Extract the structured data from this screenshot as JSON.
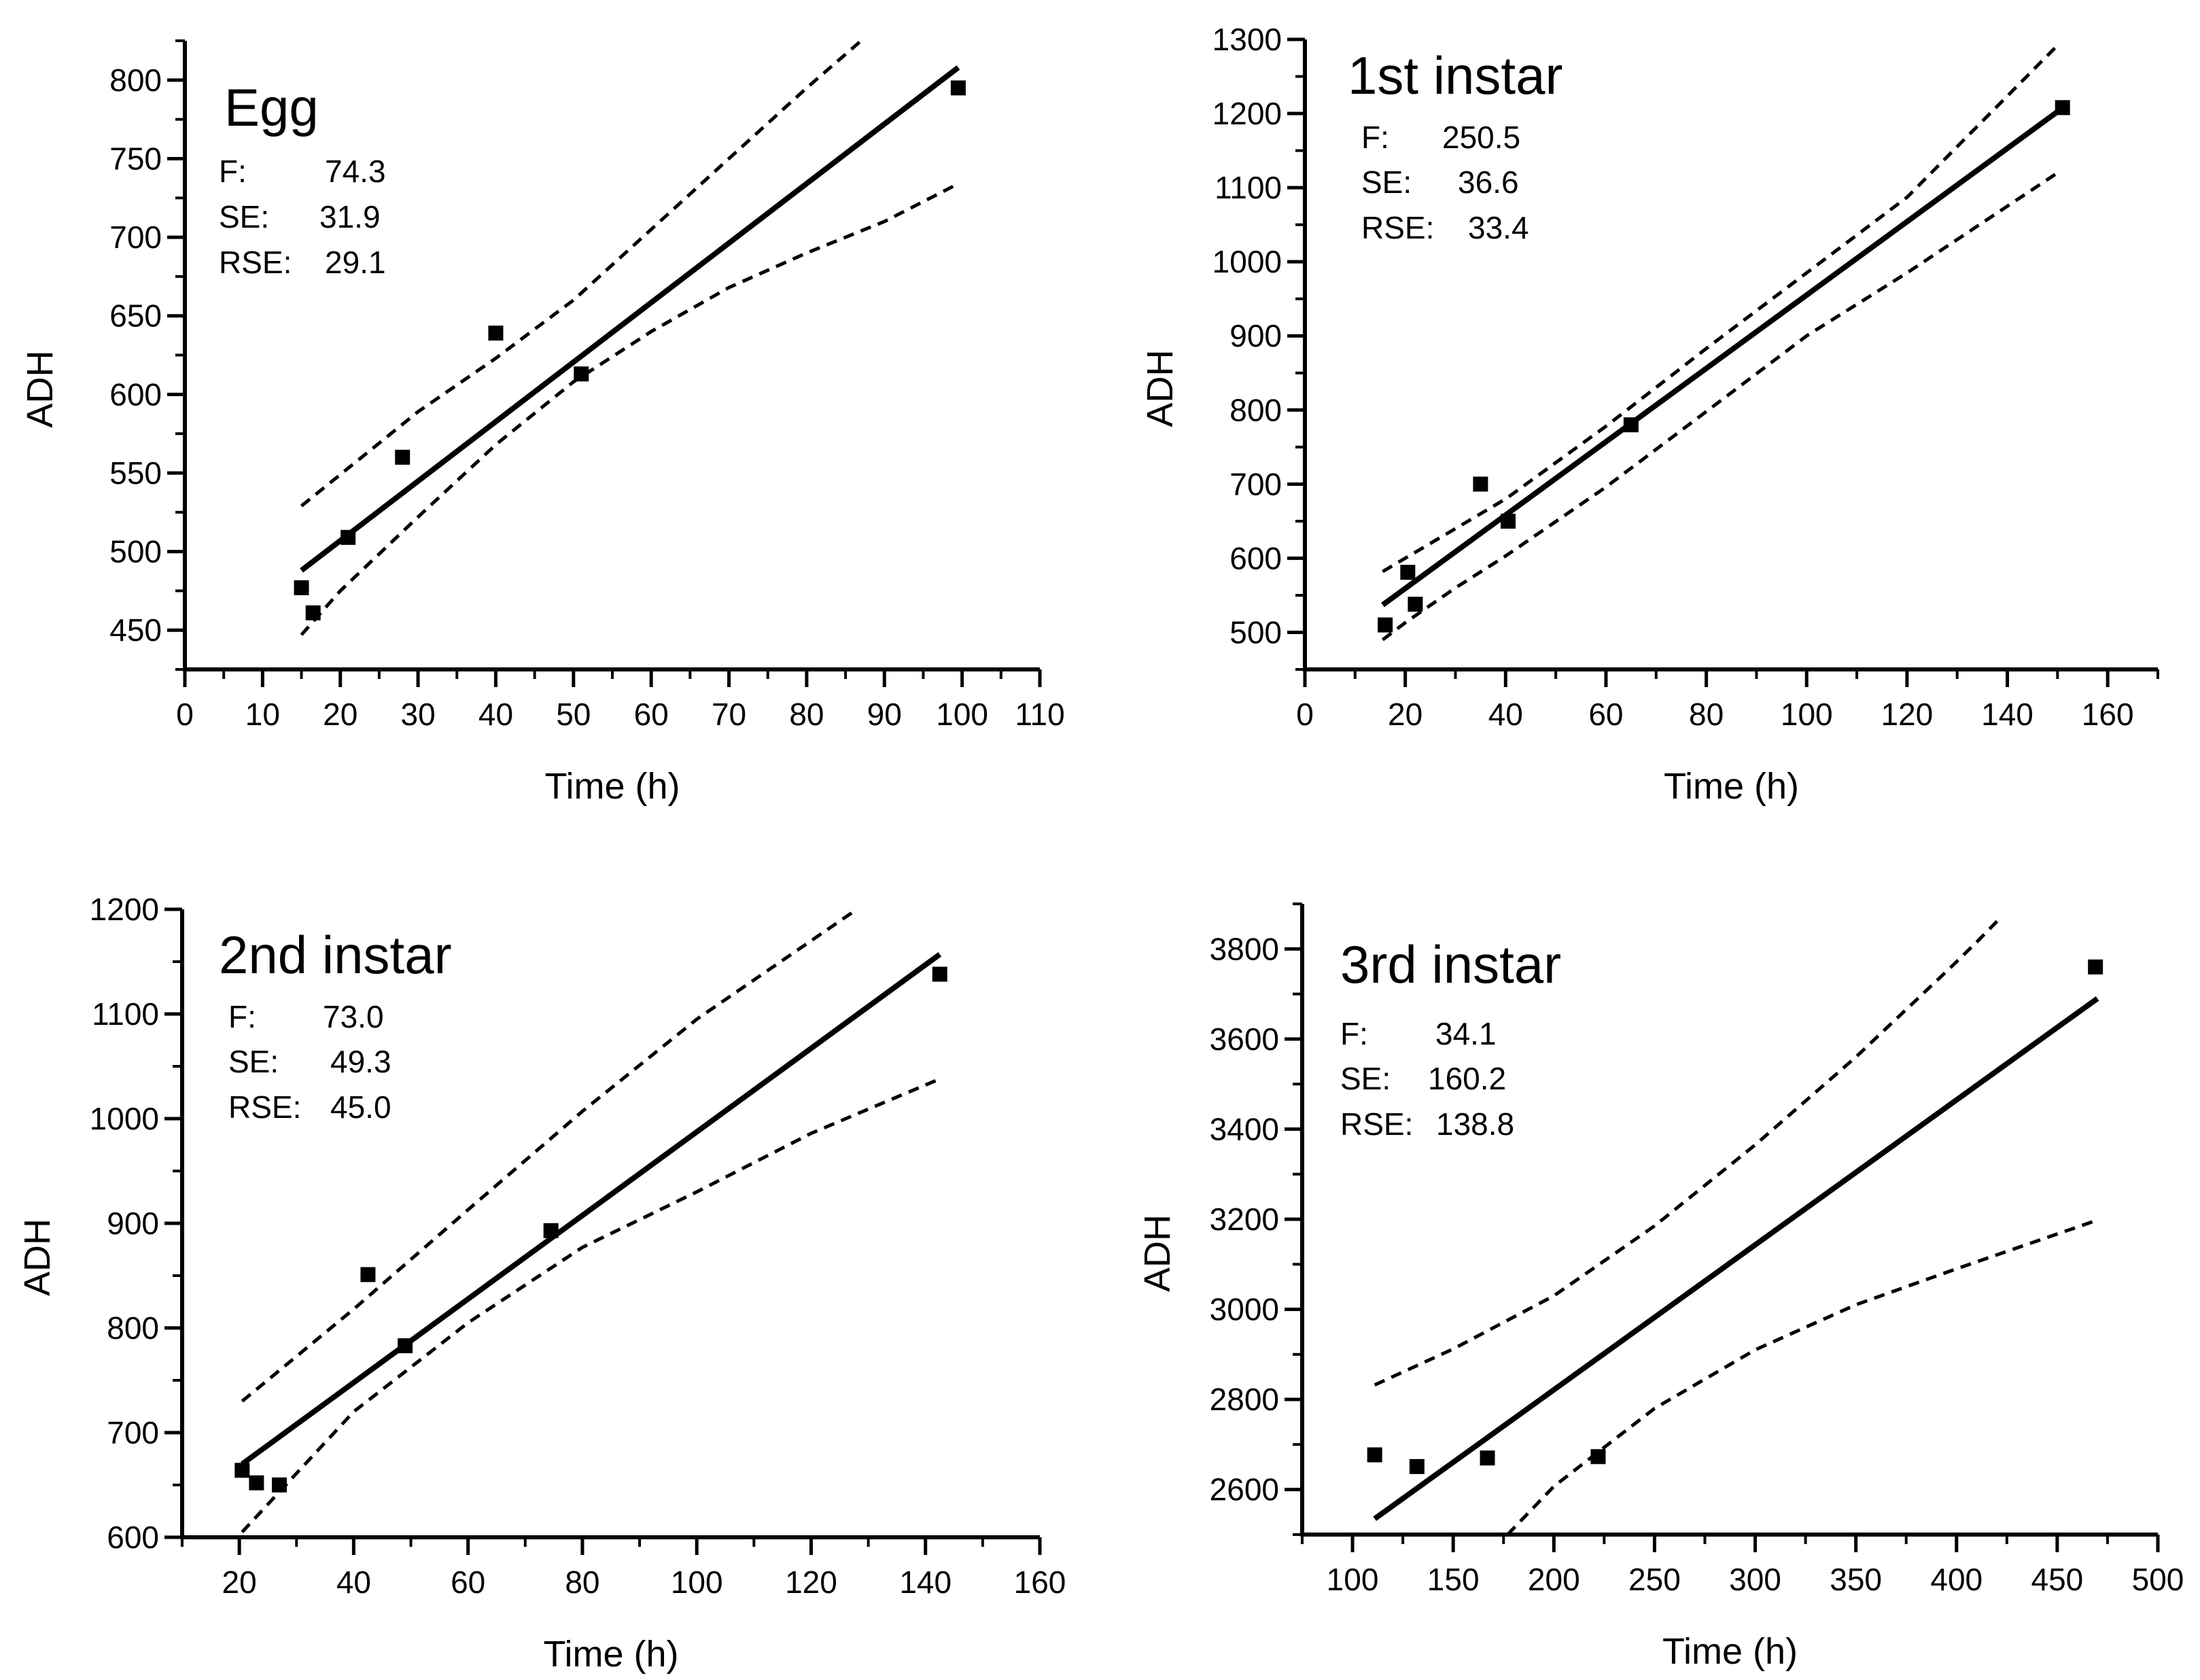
{
  "chart_data": [
    {
      "type": "scatter",
      "title": "Egg",
      "xlabel": "Time (h)",
      "ylabel": "ADH",
      "xlim": [
        0,
        110
      ],
      "ylim": [
        425,
        825
      ],
      "xticks": [
        0,
        10,
        20,
        30,
        40,
        50,
        60,
        70,
        80,
        90,
        100,
        110
      ],
      "xtick_labels": [
        "0",
        "10",
        "20",
        "30",
        "40",
        "50",
        "60",
        "70",
        "80",
        "90",
        "100",
        "110"
      ],
      "yticks": [
        450,
        500,
        550,
        600,
        650,
        700,
        750,
        800
      ],
      "ytick_labels": [
        "450",
        "500",
        "550",
        "600",
        "650",
        "700",
        "750",
        "800"
      ],
      "stats": [
        {
          "label": "F:",
          "value": "74.3"
        },
        {
          "label": "SE:",
          "value": "31.9"
        },
        {
          "label": "RSE:",
          "value": "29.1"
        }
      ],
      "points": [
        [
          15,
          477
        ],
        [
          16.5,
          461
        ],
        [
          21,
          509
        ],
        [
          28,
          560
        ],
        [
          40,
          639
        ],
        [
          51,
          613
        ],
        [
          99.5,
          795
        ]
      ],
      "fit": [
        [
          15,
          488
        ],
        [
          99.5,
          808
        ]
      ],
      "ci_upper": [
        [
          15,
          529
        ],
        [
          20,
          549
        ],
        [
          30,
          589
        ],
        [
          40,
          623
        ],
        [
          50,
          660
        ],
        [
          60,
          705
        ],
        [
          70,
          750
        ],
        [
          80,
          795
        ],
        [
          87,
          825
        ]
      ],
      "ci_lower": [
        [
          15,
          447
        ],
        [
          20,
          475
        ],
        [
          30,
          522
        ],
        [
          40,
          568
        ],
        [
          50,
          608
        ],
        [
          60,
          640
        ],
        [
          70,
          668
        ],
        [
          80,
          690
        ],
        [
          90,
          710
        ],
        [
          99.5,
          734
        ]
      ]
    },
    {
      "type": "scatter",
      "title": "1st instar",
      "xlabel": "Time (h)",
      "ylabel": "ADH",
      "xlim": [
        0,
        170
      ],
      "ylim": [
        450,
        1300
      ],
      "xticks": [
        0,
        20,
        40,
        60,
        80,
        100,
        120,
        140,
        160
      ],
      "xtick_labels": [
        "0",
        "20",
        "40",
        "60",
        "80",
        "100",
        "120",
        "140",
        "160"
      ],
      "yticks": [
        500,
        600,
        700,
        800,
        900,
        1000,
        1100,
        1200,
        1300
      ],
      "ytick_labels": [
        "500",
        "600",
        "700",
        "800",
        "900",
        "1000",
        "1100",
        "1200",
        "1300"
      ],
      "stats": [
        {
          "label": "F:",
          "value": "250.5"
        },
        {
          "label": "SE:",
          "value": "36.6"
        },
        {
          "label": "RSE:",
          "value": "33.4"
        }
      ],
      "points": [
        [
          16,
          510
        ],
        [
          20.5,
          581
        ],
        [
          22,
          538
        ],
        [
          35,
          700
        ],
        [
          40.5,
          650
        ],
        [
          65,
          780
        ],
        [
          151,
          1208
        ]
      ],
      "fit": [
        [
          15.5,
          537
        ],
        [
          150.5,
          1205
        ]
      ],
      "ci_upper": [
        [
          15.5,
          582
        ],
        [
          20,
          600
        ],
        [
          30,
          640
        ],
        [
          40,
          680
        ],
        [
          60,
          778
        ],
        [
          80,
          883
        ],
        [
          100,
          985
        ],
        [
          120,
          1087
        ],
        [
          150,
          1292
        ]
      ],
      "ci_lower": [
        [
          15.5,
          490
        ],
        [
          20,
          513
        ],
        [
          30,
          560
        ],
        [
          40,
          603
        ],
        [
          60,
          696
        ],
        [
          80,
          798
        ],
        [
          100,
          900
        ],
        [
          120,
          985
        ],
        [
          150,
          1120
        ]
      ]
    },
    {
      "type": "scatter",
      "title": "2nd instar",
      "xlabel": "Time (h)",
      "ylabel": "ADH",
      "xlim": [
        10,
        160
      ],
      "ylim": [
        600,
        1200
      ],
      "xticks": [
        20,
        40,
        60,
        80,
        100,
        120,
        140,
        160
      ],
      "xtick_labels": [
        "20",
        "40",
        "60",
        "80",
        "100",
        "120",
        "140",
        "160"
      ],
      "yticks": [
        600,
        700,
        800,
        900,
        1000,
        1100,
        1200
      ],
      "ytick_labels": [
        "600",
        "700",
        "800",
        "900",
        "1000",
        "1100",
        "1200"
      ],
      "stats": [
        {
          "label": "F:",
          "value": "73.0"
        },
        {
          "label": "SE:",
          "value": "49.3"
        },
        {
          "label": "RSE:",
          "value": "45.0"
        }
      ],
      "points": [
        [
          20.5,
          664
        ],
        [
          23,
          652
        ],
        [
          27,
          650
        ],
        [
          42.5,
          851
        ],
        [
          49,
          783
        ],
        [
          74.5,
          893
        ],
        [
          142.5,
          1138
        ]
      ],
      "fit": [
        [
          20.5,
          670
        ],
        [
          142.5,
          1157
        ]
      ],
      "ci_upper": [
        [
          20.5,
          730
        ],
        [
          40,
          818
        ],
        [
          60,
          913
        ],
        [
          80,
          1007
        ],
        [
          100,
          1095
        ],
        [
          120,
          1170
        ],
        [
          128,
          1200
        ]
      ],
      "ci_lower": [
        [
          20.5,
          605
        ],
        [
          40,
          720
        ],
        [
          60,
          805
        ],
        [
          80,
          877
        ],
        [
          100,
          930
        ],
        [
          120,
          986
        ],
        [
          142.5,
          1038
        ]
      ]
    },
    {
      "type": "scatter",
      "title": "3rd instar",
      "xlabel": "Time (h)",
      "ylabel": "ADH",
      "xlim": [
        75,
        500
      ],
      "ylim": [
        2500,
        3900
      ],
      "xticks": [
        100,
        150,
        200,
        250,
        300,
        350,
        400,
        450,
        500
      ],
      "xtick_labels": [
        "100",
        "150",
        "200",
        "250",
        "300",
        "350",
        "400",
        "450",
        "500"
      ],
      "yticks": [
        2600,
        2800,
        3000,
        3200,
        3400,
        3600,
        3800
      ],
      "ytick_labels": [
        "2600",
        "2800",
        "3000",
        "3200",
        "3400",
        "3600",
        "3800"
      ],
      "stats": [
        {
          "label": "F:",
          "value": "34.1"
        },
        {
          "label": "SE:",
          "value": "160.2"
        },
        {
          "label": "RSE:",
          "value": "138.8"
        }
      ],
      "points": [
        [
          111,
          2677
        ],
        [
          132,
          2651
        ],
        [
          167,
          2670
        ],
        [
          222,
          2673
        ],
        [
          469,
          3760
        ]
      ],
      "fit": [
        [
          111,
          2535
        ],
        [
          470,
          3690
        ]
      ],
      "ci_upper": [
        [
          111,
          2832
        ],
        [
          150,
          2912
        ],
        [
          200,
          3030
        ],
        [
          250,
          3185
        ],
        [
          300,
          3365
        ],
        [
          350,
          3560
        ],
        [
          395,
          3750
        ],
        [
          410,
          3815
        ],
        [
          422,
          3870
        ]
      ],
      "ci_lower": [
        [
          177,
          2500
        ],
        [
          200,
          2607
        ],
        [
          250,
          2780
        ],
        [
          300,
          2910
        ],
        [
          350,
          3010
        ],
        [
          400,
          3090
        ],
        [
          470,
          3198
        ]
      ]
    }
  ]
}
